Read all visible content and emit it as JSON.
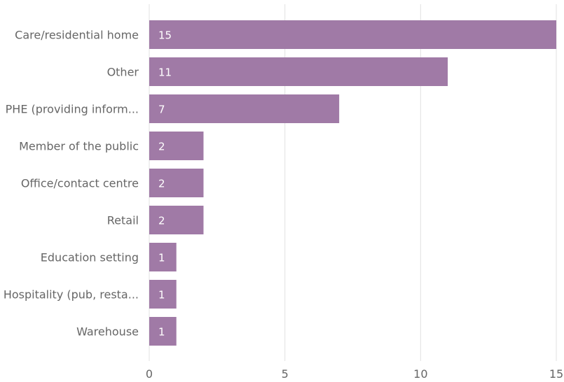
{
  "chart_data": {
    "type": "bar",
    "orientation": "horizontal",
    "categories": [
      "Care/residential home",
      "Other",
      "PHE (providing inform...",
      "Member of the public",
      "Office/contact centre",
      "Retail",
      "Education setting",
      "Hospitality (pub, resta...",
      "Warehouse"
    ],
    "values": [
      15,
      11,
      7,
      2,
      2,
      2,
      1,
      1,
      1
    ],
    "xlim": [
      0,
      15
    ],
    "xticks": [
      0,
      5,
      10,
      15
    ],
    "grid": true,
    "data_labels": true,
    "bar_color": "#a07aa6"
  }
}
